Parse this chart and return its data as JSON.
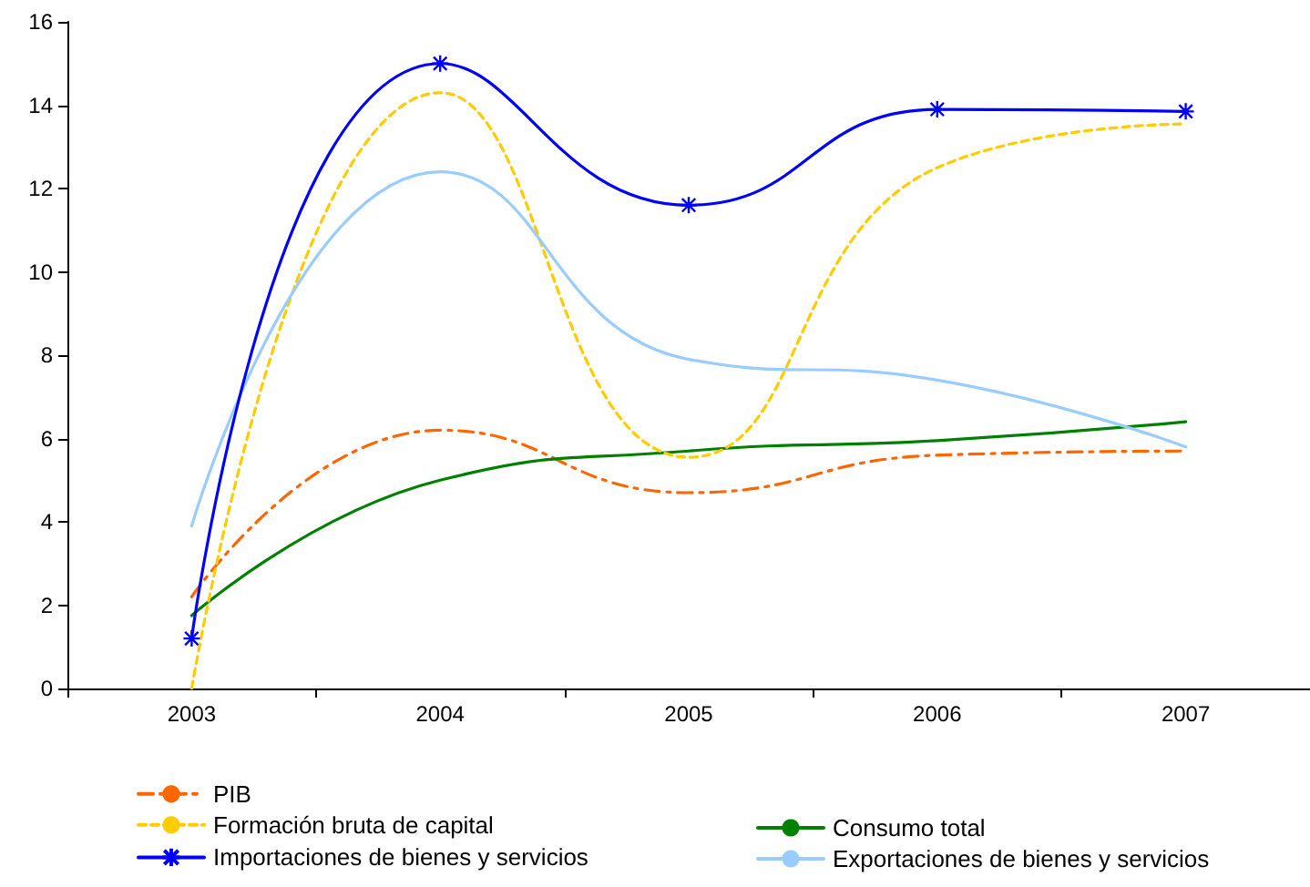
{
  "chart_data": {
    "type": "line",
    "categories": [
      "2003",
      "2004",
      "2005",
      "2006",
      "2007"
    ],
    "ylim": [
      0,
      16
    ],
    "yticks": [
      0,
      2,
      4,
      6,
      8,
      10,
      12,
      14,
      16
    ],
    "grid": false,
    "legend": "bottom",
    "marker": "none",
    "series": [
      {
        "name": "PIB",
        "color": "#ff6600",
        "line_style": "dashed",
        "values": [
          2.2,
          6.2,
          4.7,
          5.6,
          5.7
        ]
      },
      {
        "name": "Consumo total",
        "color": "#008000",
        "line_style": "solid",
        "values": [
          1.75,
          5.0,
          5.7,
          5.95,
          6.4
        ]
      },
      {
        "name": "Formación bruta de capital",
        "color": "#ffcc00",
        "line_style": "dotted",
        "values": [
          0,
          14.3,
          5.55,
          12.5,
          13.55
        ]
      },
      {
        "name": "Exportaciones de bienes y servicios",
        "color": "#99ccff",
        "line_style": "solid",
        "values": [
          3.9,
          12.4,
          7.9,
          7.4,
          5.8
        ]
      },
      {
        "name": "Importaciones de bienes y servicios",
        "color": "#0000ff",
        "line_style": "solid",
        "marker": "cross",
        "values": [
          1.2,
          15.0,
          11.6,
          13.9,
          13.85
        ]
      }
    ]
  }
}
